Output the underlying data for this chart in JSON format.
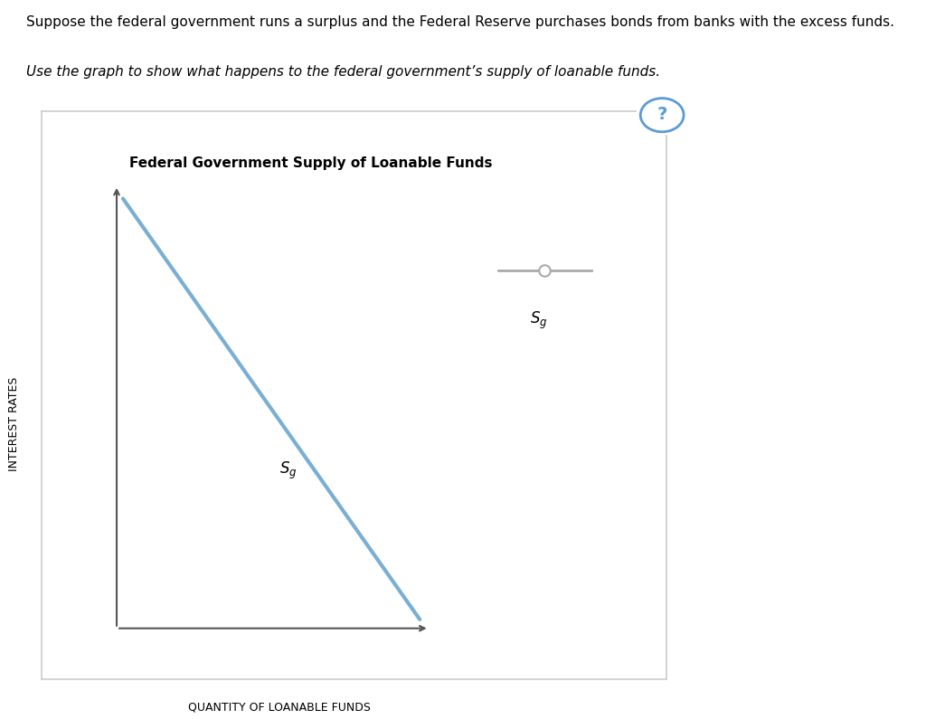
{
  "title": "Federal Government Supply of Loanable Funds",
  "xlabel": "QUANTITY OF LOANABLE FUNDS",
  "ylabel": "INTEREST RATES",
  "header_line1": "Suppose the federal government runs a surplus and the Federal Reserve purchases bonds from banks with the excess funds.",
  "header_line2": "Use the graph to show what happens to the federal government’s supply of loanable funds.",
  "line_color": "#7aafd4",
  "line_width": 3.0,
  "axis_color": "#555555",
  "background_color": "#ffffff",
  "box_edge_color": "#cccccc",
  "legend_line_color": "#aaaaaa",
  "question_color": "#5b9bd5",
  "font_size_header1": 11,
  "font_size_header2": 11,
  "font_size_title": 11,
  "font_size_axis_label": 9,
  "font_size_sg": 12
}
